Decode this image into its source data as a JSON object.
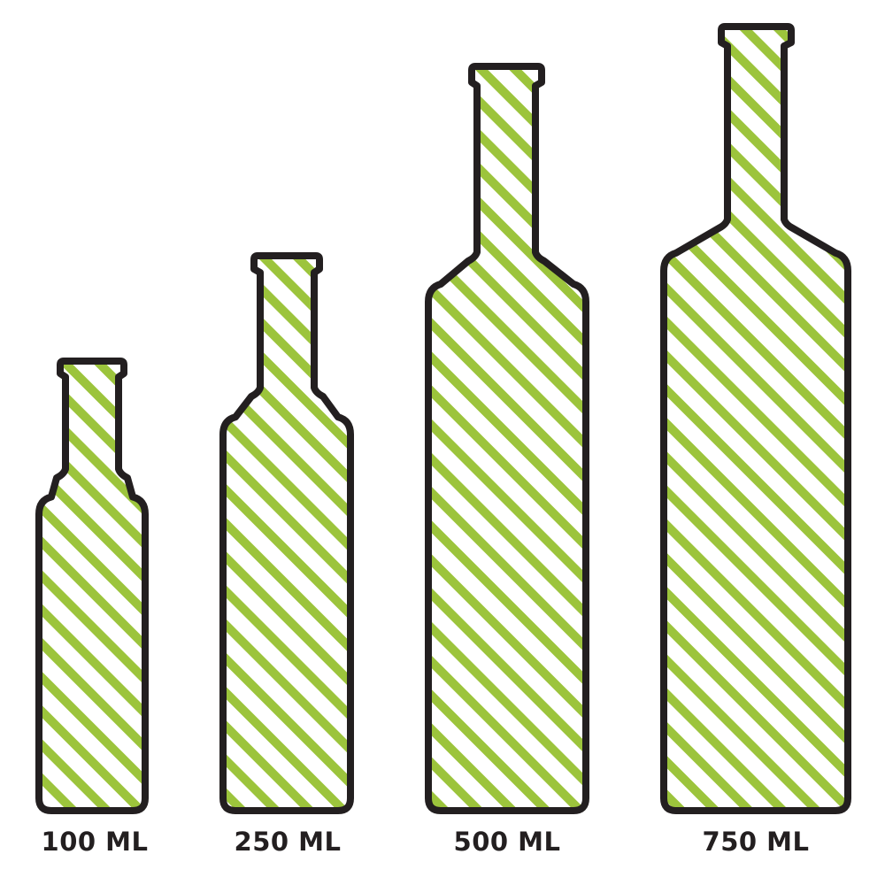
{
  "colors": {
    "outline": "#231f20",
    "stripe": "#9cc43c",
    "background": "#ffffff"
  },
  "bottles": [
    {
      "label": "100 ML"
    },
    {
      "label": "250 ML"
    },
    {
      "label": "500 ML"
    },
    {
      "label": "750 ML"
    }
  ]
}
